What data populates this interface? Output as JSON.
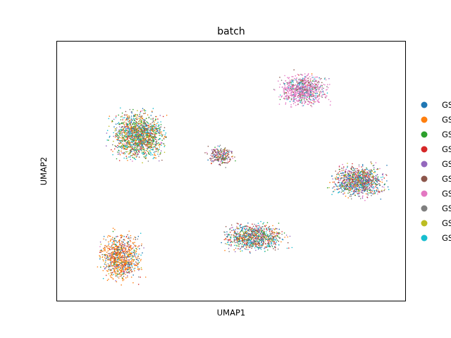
{
  "chart_data": {
    "type": "scatter",
    "title": "batch",
    "xlabel": "UMAP1",
    "ylabel": "UMAP2",
    "xticks": [],
    "yticks": [],
    "grid": false,
    "legend_position": "right-outside",
    "legend": [
      {
        "label": "GS",
        "color": "#1f77b4"
      },
      {
        "label": "GS",
        "color": "#ff7f0e"
      },
      {
        "label": "GS",
        "color": "#2ca02c"
      },
      {
        "label": "GS",
        "color": "#d62728"
      },
      {
        "label": "GS",
        "color": "#9467bd"
      },
      {
        "label": "GS",
        "color": "#8c564b"
      },
      {
        "label": "GS",
        "color": "#e377c2"
      },
      {
        "label": "GS",
        "color": "#7f7f7f"
      },
      {
        "label": "GS",
        "color": "#bcbd22"
      },
      {
        "label": "GS",
        "color": "#17becf"
      }
    ],
    "clusters": [
      {
        "name": "upper-left-large",
        "cx": 0.23,
        "cy": 0.64,
        "rx": 0.1,
        "ry": 0.12,
        "n": 1600,
        "mix": [
          0.06,
          0.16,
          0.16,
          0.06,
          0.08,
          0.07,
          0.02,
          0.06,
          0.13,
          0.2
        ]
      },
      {
        "name": "top-right-pink",
        "cx": 0.71,
        "cy": 0.82,
        "rx": 0.09,
        "ry": 0.08,
        "n": 900,
        "mix": [
          0.03,
          0.01,
          0.02,
          0.02,
          0.03,
          0.05,
          0.62,
          0.1,
          0.02,
          0.1
        ]
      },
      {
        "name": "right-middle",
        "cx": 0.87,
        "cy": 0.46,
        "rx": 0.1,
        "ry": 0.08,
        "n": 1100,
        "mix": [
          0.13,
          0.08,
          0.08,
          0.09,
          0.12,
          0.09,
          0.1,
          0.1,
          0.07,
          0.14
        ]
      },
      {
        "name": "center-bottom",
        "cx": 0.57,
        "cy": 0.24,
        "rx": 0.12,
        "ry": 0.07,
        "n": 900,
        "mix": [
          0.1,
          0.09,
          0.1,
          0.13,
          0.08,
          0.15,
          0.04,
          0.09,
          0.06,
          0.16
        ]
      },
      {
        "name": "bottom-left-orange",
        "cx": 0.18,
        "cy": 0.16,
        "rx": 0.08,
        "ry": 0.12,
        "n": 900,
        "mix": [
          0.08,
          0.5,
          0.04,
          0.07,
          0.05,
          0.09,
          0.03,
          0.06,
          0.04,
          0.04
        ]
      },
      {
        "name": "small-center-brown",
        "cx": 0.47,
        "cy": 0.56,
        "rx": 0.05,
        "ry": 0.05,
        "n": 260,
        "mix": [
          0.05,
          0.04,
          0.05,
          0.08,
          0.1,
          0.45,
          0.08,
          0.07,
          0.04,
          0.04
        ]
      }
    ]
  }
}
